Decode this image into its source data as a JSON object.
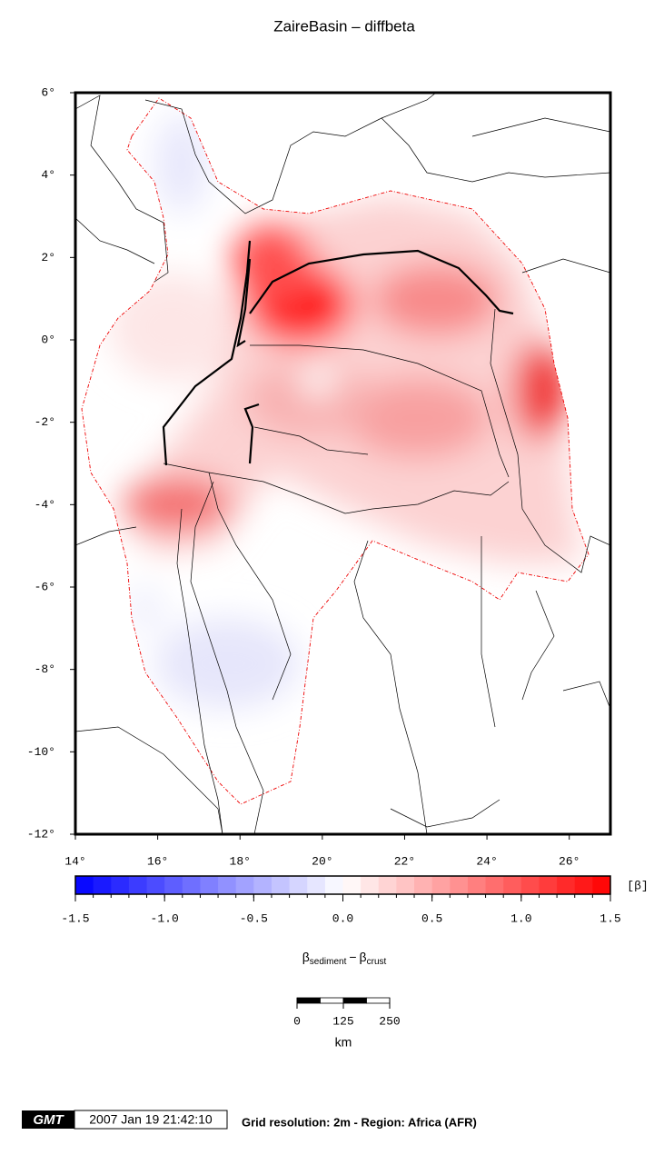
{
  "title": "ZaireBasin – diffbeta",
  "map": {
    "xlim": [
      14,
      27
    ],
    "ylim": [
      -12,
      6
    ],
    "xticks": [
      {
        "value": 14,
        "label": "14°"
      },
      {
        "value": 16,
        "label": "16°"
      },
      {
        "value": 18,
        "label": "18°"
      },
      {
        "value": 20,
        "label": "20°"
      },
      {
        "value": 22,
        "label": "22°"
      },
      {
        "value": 24,
        "label": "24°"
      },
      {
        "value": 26,
        "label": "26°"
      }
    ],
    "yticks": [
      {
        "value": 6,
        "label": "6°"
      },
      {
        "value": 4,
        "label": "4°"
      },
      {
        "value": 2,
        "label": "2°"
      },
      {
        "value": 0,
        "label": "0°"
      },
      {
        "value": -2,
        "label": "-2°"
      },
      {
        "value": -4,
        "label": "-4°"
      },
      {
        "value": -6,
        "label": "-6°"
      },
      {
        "value": -8,
        "label": "-8°"
      },
      {
        "value": -10,
        "label": "-10°"
      },
      {
        "value": -12,
        "label": "-12°"
      }
    ]
  },
  "colorbar": {
    "lim": [
      -1.5,
      1.5
    ],
    "step": 0.1,
    "colors": {
      "low": "#0000ff",
      "mid": "#ffffff",
      "high": "#ff0000"
    },
    "ticks": [
      -1.5,
      {
        "value": -1.0,
        "label": "-1.0"
      },
      -0.5,
      {
        "value": 0.0,
        "label": "0.0"
      },
      0.5,
      {
        "value": 1.0,
        "label": "1.0"
      },
      1.5
    ],
    "unit": "[β]",
    "label": {
      "symbol_1": "β",
      "subscript_1": "sediment",
      "operator": "−",
      "symbol_2": "β",
      "subscript_2": "crust"
    }
  },
  "scalebar": {
    "ticks": [
      0,
      125,
      250
    ],
    "unit": "km"
  },
  "footer": {
    "logo": "GMT",
    "timestamp": "2007 Jan 19 21:42:10",
    "note": "Grid resolution: 2m - Region: Africa (AFR)"
  }
}
